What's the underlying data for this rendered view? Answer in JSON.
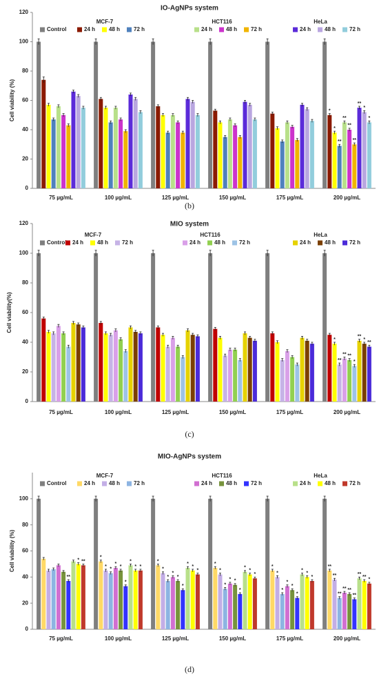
{
  "chart_data": [
    {
      "type": "bar",
      "title": "IO-AgNPs system",
      "ylabel": "Cell viability (%)",
      "panel_label": "(b)",
      "categories": [
        "75 µg/mL",
        "100 µg/mL",
        "125 µg/mL",
        "150 µg/mL",
        "175 µg/mL",
        "200 µg/mL"
      ],
      "ylim": [
        0,
        120
      ],
      "yticks": [
        0,
        20,
        40,
        60,
        80,
        100,
        120
      ],
      "legend_groups": [
        "MCF-7",
        "HCT116",
        "HeLa"
      ],
      "series": [
        {
          "name": "Control",
          "color": "#7f7f7f",
          "values": [
            100,
            100,
            100,
            100,
            100,
            100
          ],
          "errors": [
            2,
            2,
            2,
            2,
            2,
            2
          ]
        },
        {
          "name": "24 h",
          "color": "#8b1a00",
          "values": [
            74,
            61,
            56,
            53,
            51,
            50
          ],
          "errors": [
            2,
            1,
            1,
            1,
            1,
            1
          ],
          "significance": [
            null,
            null,
            null,
            null,
            null,
            "*"
          ]
        },
        {
          "name": "48 h",
          "color": "#ffff00",
          "values": [
            57,
            55,
            50,
            45,
            41,
            38
          ],
          "errors": [
            1,
            1,
            1,
            1,
            1,
            1
          ],
          "significance": [
            null,
            null,
            null,
            null,
            null,
            "*"
          ]
        },
        {
          "name": "72 h",
          "color": "#4f81bd",
          "values": [
            47,
            45,
            38,
            35,
            32,
            29
          ],
          "errors": [
            1,
            1,
            1,
            1,
            1,
            1
          ],
          "significance": [
            null,
            null,
            null,
            null,
            null,
            "**"
          ]
        },
        {
          "name": "24 h",
          "color": "#b8e08a",
          "values": [
            56,
            55,
            50,
            47,
            45,
            45
          ],
          "errors": [
            1,
            1,
            1,
            1,
            1,
            1
          ],
          "significance": [
            null,
            null,
            null,
            null,
            null,
            "**"
          ]
        },
        {
          "name": "48 h",
          "color": "#cc33cc",
          "values": [
            50,
            47,
            45,
            43,
            42,
            40
          ],
          "errors": [
            1,
            1,
            1,
            1,
            1,
            1
          ],
          "significance": [
            null,
            null,
            null,
            null,
            null,
            "**"
          ]
        },
        {
          "name": "72 h",
          "color": "#f0b400",
          "values": [
            43,
            39,
            38,
            35,
            33,
            30
          ],
          "errors": [
            1,
            1,
            1,
            1,
            1,
            1
          ],
          "significance": [
            null,
            null,
            null,
            null,
            null,
            "**"
          ]
        },
        {
          "name": "24 h",
          "color": "#5b2bd9",
          "values": [
            66,
            64,
            61,
            59,
            57,
            55
          ],
          "errors": [
            1,
            1,
            1,
            1,
            1,
            1
          ],
          "significance": [
            null,
            null,
            null,
            null,
            null,
            "**"
          ]
        },
        {
          "name": "48 h",
          "color": "#b9a6e0",
          "values": [
            63,
            61,
            59,
            57,
            54,
            52
          ],
          "errors": [
            1,
            1,
            1,
            1,
            1,
            1
          ],
          "significance": [
            null,
            null,
            null,
            null,
            null,
            "*"
          ]
        },
        {
          "name": "72 h",
          "color": "#92cddc",
          "values": [
            55,
            52,
            50,
            47,
            46,
            45
          ],
          "errors": [
            1,
            1,
            1,
            1,
            1,
            1
          ],
          "significance": [
            null,
            null,
            null,
            null,
            null,
            "*"
          ]
        }
      ]
    },
    {
      "type": "bar",
      "title": "MIO system",
      "ylabel": "Cell viability(%)",
      "panel_label": "(c)",
      "categories": [
        "75 µg/mL",
        "100 µg/mL",
        "125 µg/mL",
        "150 µg/mL",
        "175 µg/mL",
        "200 µg/mL"
      ],
      "ylim": [
        0,
        120
      ],
      "yticks": [
        0,
        20,
        40,
        60,
        80,
        100,
        120
      ],
      "legend_groups": [
        "MCF-7",
        "HCT116",
        "HeLa"
      ],
      "series": [
        {
          "name": "Control",
          "color": "#7f7f7f",
          "values": [
            100,
            100,
            100,
            100,
            100,
            100
          ],
          "errors": [
            2,
            2,
            2,
            2,
            2,
            2
          ]
        },
        {
          "name": "24 h",
          "color": "#c00000",
          "values": [
            56,
            53,
            50,
            49,
            46,
            45
          ],
          "errors": [
            1,
            1,
            1,
            1,
            1,
            1
          ],
          "significance": [
            null,
            null,
            null,
            null,
            null,
            null
          ]
        },
        {
          "name": "48 h",
          "color": "#ffff00",
          "values": [
            47,
            46,
            45,
            43,
            40,
            39
          ],
          "errors": [
            1,
            1,
            1,
            1,
            1,
            1
          ],
          "significance": [
            null,
            null,
            null,
            null,
            null,
            "*"
          ]
        },
        {
          "name": "72 h",
          "color": "#c6b3e6",
          "values": [
            46,
            45,
            37,
            31,
            28,
            25
          ],
          "errors": [
            1,
            1,
            1,
            1,
            1,
            1
          ],
          "significance": [
            null,
            null,
            null,
            null,
            null,
            "**"
          ]
        },
        {
          "name": "24 h",
          "color": "#d9a0e8",
          "values": [
            51,
            48,
            43,
            35,
            34,
            29
          ],
          "errors": [
            1,
            1,
            1,
            1,
            1,
            1
          ],
          "significance": [
            null,
            null,
            null,
            null,
            null,
            "**"
          ]
        },
        {
          "name": "48 h",
          "color": "#92d050",
          "values": [
            46,
            42,
            37,
            35,
            30,
            28
          ],
          "errors": [
            1,
            1,
            1,
            1,
            1,
            1
          ],
          "significance": [
            null,
            null,
            null,
            null,
            null,
            "**"
          ]
        },
        {
          "name": "72 h",
          "color": "#9dc3e6",
          "values": [
            37,
            34,
            30,
            28,
            25,
            24
          ],
          "errors": [
            1,
            1,
            1,
            1,
            1,
            1
          ],
          "significance": [
            null,
            null,
            null,
            null,
            null,
            "*"
          ]
        },
        {
          "name": "24 h",
          "color": "#e6d200",
          "values": [
            53,
            50,
            48,
            46,
            43,
            41
          ],
          "errors": [
            1,
            1,
            1,
            1,
            1,
            1
          ],
          "significance": [
            null,
            null,
            null,
            null,
            null,
            "**"
          ]
        },
        {
          "name": "48 h",
          "color": "#7b3f00",
          "values": [
            52,
            47,
            45,
            43,
            41,
            39
          ],
          "errors": [
            1,
            1,
            1,
            1,
            1,
            1
          ],
          "significance": [
            null,
            null,
            null,
            null,
            null,
            "*"
          ]
        },
        {
          "name": "72 h",
          "color": "#4b2bd9",
          "values": [
            50,
            46,
            44,
            41,
            39,
            37
          ],
          "errors": [
            1,
            1,
            1,
            1,
            1,
            1
          ],
          "significance": [
            null,
            null,
            null,
            null,
            null,
            "**"
          ]
        }
      ]
    },
    {
      "type": "bar",
      "title": "MIO-AgNPs system",
      "ylabel": "Cell viability (%)",
      "panel_label": "(d)",
      "categories": [
        "75 µg/mL",
        "100 µg/mL",
        "125 µg/mL",
        "150 µg/mL",
        "175 µg/mL",
        "200 µg/mL"
      ],
      "ylim": [
        0,
        120
      ],
      "yticks": [
        0,
        20,
        40,
        60,
        80,
        100
      ],
      "legend_groups": [
        "MCF-7",
        "HCT116",
        "HeLa"
      ],
      "series": [
        {
          "name": "Control",
          "color": "#7f7f7f",
          "values": [
            100,
            100,
            100,
            100,
            100,
            100
          ],
          "errors": [
            2,
            2,
            2,
            2,
            2,
            2
          ]
        },
        {
          "name": "24 h",
          "color": "#ffd966",
          "values": [
            54,
            52,
            49,
            47,
            45,
            45
          ],
          "errors": [
            1,
            1,
            1,
            1,
            1,
            1
          ],
          "significance": [
            null,
            "*",
            "*",
            "*",
            "*",
            "**"
          ]
        },
        {
          "name": "48 h",
          "color": "#c3aee6",
          "values": [
            45,
            45,
            43,
            42,
            40,
            38
          ],
          "errors": [
            1,
            1,
            1,
            1,
            1,
            1
          ],
          "significance": [
            null,
            "*",
            "*",
            "*",
            "*",
            "**"
          ]
        },
        {
          "name": "72 h",
          "color": "#8db4e2",
          "values": [
            46,
            43,
            37,
            31,
            27,
            24
          ],
          "errors": [
            1,
            1,
            1,
            1,
            1,
            1
          ],
          "significance": [
            null,
            "*",
            "*",
            "*",
            "*",
            "**"
          ]
        },
        {
          "name": "24 h",
          "color": "#d16fd1",
          "values": [
            49,
            47,
            40,
            35,
            33,
            28
          ],
          "errors": [
            1,
            1,
            1,
            1,
            1,
            1
          ],
          "significance": [
            null,
            "*",
            "*",
            "*",
            "*",
            "**"
          ]
        },
        {
          "name": "48 h",
          "color": "#77933c",
          "values": [
            44,
            45,
            37,
            34,
            30,
            27
          ],
          "errors": [
            1,
            1,
            1,
            1,
            1,
            1
          ],
          "significance": [
            null,
            "*",
            "*",
            "*",
            "*",
            "**"
          ]
        },
        {
          "name": "72 h",
          "color": "#3333ff",
          "values": [
            37,
            33,
            30,
            27,
            24,
            23
          ],
          "errors": [
            1,
            1,
            1,
            1,
            1,
            1
          ],
          "significance": [
            "**",
            "*",
            "*",
            "*",
            "*",
            "**"
          ]
        },
        {
          "name": "24 h",
          "color": "#b8e08a",
          "values": [
            52,
            49,
            47,
            44,
            42,
            39
          ],
          "errors": [
            1,
            1,
            1,
            1,
            1,
            1
          ],
          "significance": [
            null,
            "*",
            "*",
            "*",
            "*",
            "**"
          ]
        },
        {
          "name": "48 h",
          "color": "#ffff00",
          "values": [
            50,
            45,
            45,
            42,
            40,
            37
          ],
          "errors": [
            1,
            1,
            1,
            1,
            1,
            1
          ],
          "significance": [
            "*",
            "*",
            "*",
            "*",
            "*",
            "**"
          ]
        },
        {
          "name": "72 h",
          "color": "#c0392b",
          "values": [
            49,
            45,
            42,
            39,
            37,
            35
          ],
          "errors": [
            1,
            1,
            1,
            1,
            1,
            1
          ],
          "significance": [
            "**",
            "*",
            "*",
            "*",
            "*",
            "*"
          ]
        }
      ]
    }
  ]
}
